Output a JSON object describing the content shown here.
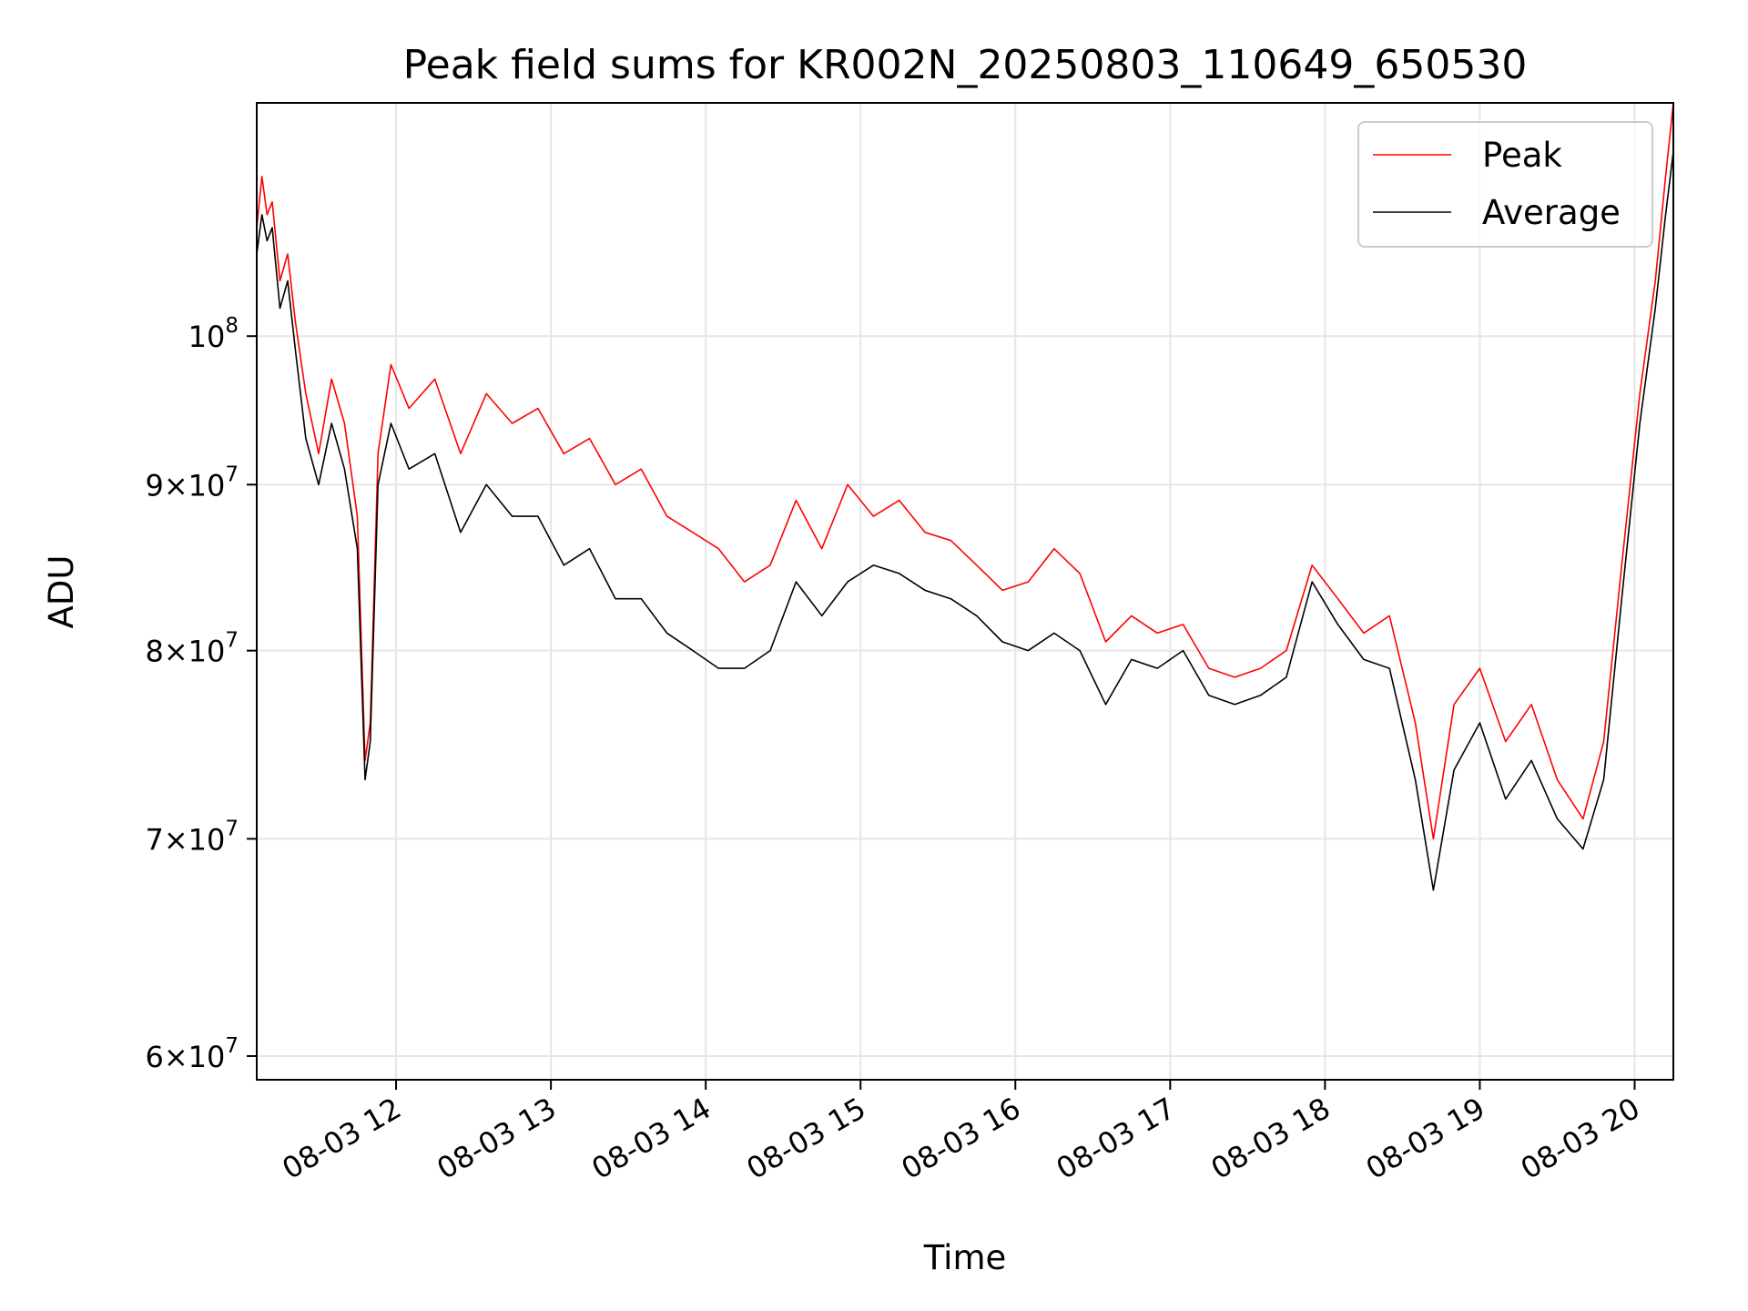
{
  "chart_data": {
    "type": "line",
    "title": "Peak field sums for KR002N_20250803_110649_650530",
    "xlabel": "Time",
    "ylabel": "ADU",
    "yscale": "log",
    "ylim": [
      59000000,
      118000000
    ],
    "xlim": [
      "2025-08-03 11:06",
      "2025-08-03 20:15"
    ],
    "grid": true,
    "legend_position": "top-right",
    "x_ticks": [
      {
        "value": "2025-08-03 12:00",
        "label": "08-03 12"
      },
      {
        "value": "2025-08-03 13:00",
        "label": "08-03 13"
      },
      {
        "value": "2025-08-03 14:00",
        "label": "08-03 14"
      },
      {
        "value": "2025-08-03 15:00",
        "label": "08-03 15"
      },
      {
        "value": "2025-08-03 16:00",
        "label": "08-03 16"
      },
      {
        "value": "2025-08-03 17:00",
        "label": "08-03 17"
      },
      {
        "value": "2025-08-03 18:00",
        "label": "08-03 18"
      },
      {
        "value": "2025-08-03 19:00",
        "label": "08-03 19"
      },
      {
        "value": "2025-08-03 20:00",
        "label": "08-03 20"
      }
    ],
    "y_ticks": [
      {
        "value": 60000000,
        "mantissa": "6",
        "base": "10",
        "exp": "7"
      },
      {
        "value": 70000000,
        "mantissa": "7",
        "base": "10",
        "exp": "7"
      },
      {
        "value": 80000000,
        "mantissa": "8",
        "base": "10",
        "exp": "7"
      },
      {
        "value": 90000000,
        "mantissa": "9",
        "base": "10",
        "exp": "7"
      },
      {
        "value": 100000000,
        "mantissa": "",
        "base": "10",
        "exp": "8"
      }
    ],
    "series": [
      {
        "name": "Peak",
        "color": "#ff0000",
        "points": [
          [
            "2025-08-03 11:06",
            108000000
          ],
          [
            "2025-08-03 11:08",
            112000000
          ],
          [
            "2025-08-03 11:10",
            109000000
          ],
          [
            "2025-08-03 11:12",
            110000000
          ],
          [
            "2025-08-03 11:15",
            104000000
          ],
          [
            "2025-08-03 11:18",
            106000000
          ],
          [
            "2025-08-03 11:21",
            101000000
          ],
          [
            "2025-08-03 11:25",
            96000000
          ],
          [
            "2025-08-03 11:30",
            92000000
          ],
          [
            "2025-08-03 11:35",
            97000000
          ],
          [
            "2025-08-03 11:40",
            94000000
          ],
          [
            "2025-08-03 11:45",
            88000000
          ],
          [
            "2025-08-03 11:48",
            74000000
          ],
          [
            "2025-08-03 11:50",
            76000000
          ],
          [
            "2025-08-03 11:53",
            92000000
          ],
          [
            "2025-08-03 11:58",
            98000000
          ],
          [
            "2025-08-03 12:05",
            95000000
          ],
          [
            "2025-08-03 12:15",
            97000000
          ],
          [
            "2025-08-03 12:25",
            92000000
          ],
          [
            "2025-08-03 12:35",
            96000000
          ],
          [
            "2025-08-03 12:45",
            94000000
          ],
          [
            "2025-08-03 12:55",
            95000000
          ],
          [
            "2025-08-03 13:05",
            92000000
          ],
          [
            "2025-08-03 13:15",
            93000000
          ],
          [
            "2025-08-03 13:25",
            90000000
          ],
          [
            "2025-08-03 13:35",
            91000000
          ],
          [
            "2025-08-03 13:45",
            88000000
          ],
          [
            "2025-08-03 13:55",
            87000000
          ],
          [
            "2025-08-03 14:05",
            86000000
          ],
          [
            "2025-08-03 14:15",
            84000000
          ],
          [
            "2025-08-03 14:25",
            85000000
          ],
          [
            "2025-08-03 14:35",
            89000000
          ],
          [
            "2025-08-03 14:45",
            86000000
          ],
          [
            "2025-08-03 14:55",
            90000000
          ],
          [
            "2025-08-03 15:05",
            88000000
          ],
          [
            "2025-08-03 15:15",
            89000000
          ],
          [
            "2025-08-03 15:25",
            87000000
          ],
          [
            "2025-08-03 15:35",
            86500000
          ],
          [
            "2025-08-03 15:45",
            85000000
          ],
          [
            "2025-08-03 15:55",
            83500000
          ],
          [
            "2025-08-03 16:05",
            84000000
          ],
          [
            "2025-08-03 16:15",
            86000000
          ],
          [
            "2025-08-03 16:25",
            84500000
          ],
          [
            "2025-08-03 16:35",
            80500000
          ],
          [
            "2025-08-03 16:45",
            82000000
          ],
          [
            "2025-08-03 16:55",
            81000000
          ],
          [
            "2025-08-03 17:05",
            81500000
          ],
          [
            "2025-08-03 17:15",
            79000000
          ],
          [
            "2025-08-03 17:25",
            78500000
          ],
          [
            "2025-08-03 17:35",
            79000000
          ],
          [
            "2025-08-03 17:45",
            80000000
          ],
          [
            "2025-08-03 17:55",
            85000000
          ],
          [
            "2025-08-03 18:05",
            83000000
          ],
          [
            "2025-08-03 18:15",
            81000000
          ],
          [
            "2025-08-03 18:25",
            82000000
          ],
          [
            "2025-08-03 18:35",
            76000000
          ],
          [
            "2025-08-03 18:42",
            70000000
          ],
          [
            "2025-08-03 18:50",
            77000000
          ],
          [
            "2025-08-03 19:00",
            79000000
          ],
          [
            "2025-08-03 19:10",
            75000000
          ],
          [
            "2025-08-03 19:20",
            77000000
          ],
          [
            "2025-08-03 19:30",
            73000000
          ],
          [
            "2025-08-03 19:40",
            71000000
          ],
          [
            "2025-08-03 19:48",
            75000000
          ],
          [
            "2025-08-03 19:55",
            85000000
          ],
          [
            "2025-08-03 20:02",
            96000000
          ],
          [
            "2025-08-03 20:08",
            104000000
          ],
          [
            "2025-08-03 20:12",
            112000000
          ],
          [
            "2025-08-03 20:15",
            118000000
          ]
        ]
      },
      {
        "name": "Average",
        "color": "#000000",
        "points": [
          [
            "2025-08-03 11:06",
            106000000
          ],
          [
            "2025-08-03 11:08",
            109000000
          ],
          [
            "2025-08-03 11:10",
            107000000
          ],
          [
            "2025-08-03 11:12",
            108000000
          ],
          [
            "2025-08-03 11:15",
            102000000
          ],
          [
            "2025-08-03 11:18",
            104000000
          ],
          [
            "2025-08-03 11:21",
            99000000
          ],
          [
            "2025-08-03 11:25",
            93000000
          ],
          [
            "2025-08-03 11:30",
            90000000
          ],
          [
            "2025-08-03 11:35",
            94000000
          ],
          [
            "2025-08-03 11:40",
            91000000
          ],
          [
            "2025-08-03 11:45",
            86000000
          ],
          [
            "2025-08-03 11:48",
            73000000
          ],
          [
            "2025-08-03 11:50",
            75000000
          ],
          [
            "2025-08-03 11:53",
            90000000
          ],
          [
            "2025-08-03 11:58",
            94000000
          ],
          [
            "2025-08-03 12:05",
            91000000
          ],
          [
            "2025-08-03 12:15",
            92000000
          ],
          [
            "2025-08-03 12:25",
            87000000
          ],
          [
            "2025-08-03 12:35",
            90000000
          ],
          [
            "2025-08-03 12:45",
            88000000
          ],
          [
            "2025-08-03 12:55",
            88000000
          ],
          [
            "2025-08-03 13:05",
            85000000
          ],
          [
            "2025-08-03 13:15",
            86000000
          ],
          [
            "2025-08-03 13:25",
            83000000
          ],
          [
            "2025-08-03 13:35",
            83000000
          ],
          [
            "2025-08-03 13:45",
            81000000
          ],
          [
            "2025-08-03 13:55",
            80000000
          ],
          [
            "2025-08-03 14:05",
            79000000
          ],
          [
            "2025-08-03 14:15",
            79000000
          ],
          [
            "2025-08-03 14:25",
            80000000
          ],
          [
            "2025-08-03 14:35",
            84000000
          ],
          [
            "2025-08-03 14:45",
            82000000
          ],
          [
            "2025-08-03 14:55",
            84000000
          ],
          [
            "2025-08-03 15:05",
            85000000
          ],
          [
            "2025-08-03 15:15",
            84500000
          ],
          [
            "2025-08-03 15:25",
            83500000
          ],
          [
            "2025-08-03 15:35",
            83000000
          ],
          [
            "2025-08-03 15:45",
            82000000
          ],
          [
            "2025-08-03 15:55",
            80500000
          ],
          [
            "2025-08-03 16:05",
            80000000
          ],
          [
            "2025-08-03 16:15",
            81000000
          ],
          [
            "2025-08-03 16:25",
            80000000
          ],
          [
            "2025-08-03 16:35",
            77000000
          ],
          [
            "2025-08-03 16:45",
            79500000
          ],
          [
            "2025-08-03 16:55",
            79000000
          ],
          [
            "2025-08-03 17:05",
            80000000
          ],
          [
            "2025-08-03 17:15",
            77500000
          ],
          [
            "2025-08-03 17:25",
            77000000
          ],
          [
            "2025-08-03 17:35",
            77500000
          ],
          [
            "2025-08-03 17:45",
            78500000
          ],
          [
            "2025-08-03 17:55",
            84000000
          ],
          [
            "2025-08-03 18:05",
            81500000
          ],
          [
            "2025-08-03 18:15",
            79500000
          ],
          [
            "2025-08-03 18:25",
            79000000
          ],
          [
            "2025-08-03 18:35",
            73000000
          ],
          [
            "2025-08-03 18:42",
            67500000
          ],
          [
            "2025-08-03 18:50",
            73500000
          ],
          [
            "2025-08-03 19:00",
            76000000
          ],
          [
            "2025-08-03 19:10",
            72000000
          ],
          [
            "2025-08-03 19:20",
            74000000
          ],
          [
            "2025-08-03 19:30",
            71000000
          ],
          [
            "2025-08-03 19:40",
            69500000
          ],
          [
            "2025-08-03 19:48",
            73000000
          ],
          [
            "2025-08-03 19:55",
            83000000
          ],
          [
            "2025-08-03 20:02",
            94000000
          ],
          [
            "2025-08-03 20:08",
            102000000
          ],
          [
            "2025-08-03 20:12",
            109000000
          ],
          [
            "2025-08-03 20:15",
            114000000
          ]
        ]
      }
    ]
  }
}
